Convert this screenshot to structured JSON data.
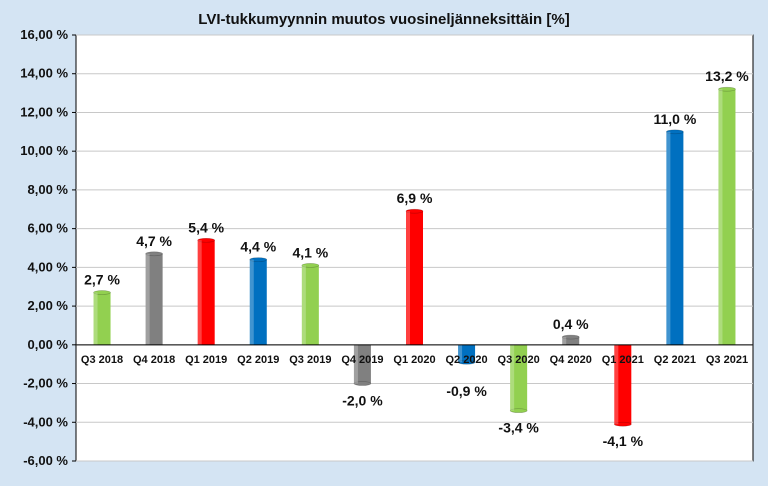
{
  "chart_data": {
    "type": "bar",
    "title": "LVI-tukkumyynnin muutos vuosineljänneksittäin [%]",
    "xlabel": "",
    "ylabel": "",
    "ylim": [
      -6,
      16
    ],
    "ytick_step": 2,
    "ytick_labels": [
      "-6,00 %",
      "-4,00 %",
      "-2,00 %",
      "0,00 %",
      "2,00 %",
      "4,00 %",
      "6,00 %",
      "8,00 %",
      "10,00 %",
      "12,00 %",
      "14,00 %",
      "16,00 %"
    ],
    "grid": true,
    "legend": "none",
    "categories": [
      "Q3 2018",
      "Q4 2018",
      "Q1 2019",
      "Q2 2019",
      "Q3 2019",
      "Q4 2019",
      "Q1 2020",
      "Q2 2020",
      "Q3 2020",
      "Q4 2020",
      "Q1 2021",
      "Q2 2021",
      "Q3 2021"
    ],
    "values": [
      2.7,
      4.7,
      5.4,
      4.4,
      4.1,
      -2.0,
      6.9,
      -0.9,
      -3.4,
      0.4,
      -4.1,
      11.0,
      13.2
    ],
    "value_labels": [
      "2,7 %",
      "4,7 %",
      "5,4 %",
      "4,4 %",
      "4,1 %",
      "-2,0 %",
      "6,9 %",
      "-0,9 %",
      "-3,4 %",
      "0,4 %",
      "-4,1 %",
      "11,0 %",
      "13,2 %"
    ],
    "bar_colors": [
      "#92d050",
      "#808080",
      "#ff0000",
      "#0070c0",
      "#92d050",
      "#808080",
      "#ff0000",
      "#0070c0",
      "#92d050",
      "#808080",
      "#ff0000",
      "#0070c0",
      "#92d050"
    ]
  },
  "colors": {
    "background": "#d4e4f3",
    "plot_area": "#ffffff",
    "grid": "#c8c8c8",
    "axis": "#000000"
  }
}
